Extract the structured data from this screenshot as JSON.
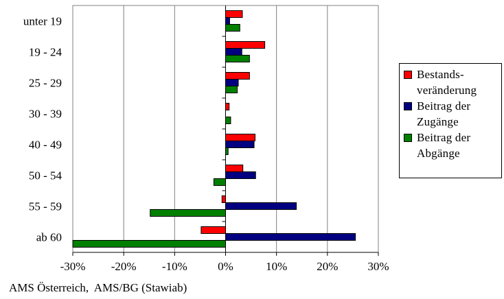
{
  "chart_data": {
    "type": "bar",
    "orientation": "horizontal",
    "categories": [
      "unter 19",
      "19 - 24",
      "25 - 29",
      "30 - 39",
      "40 - 49",
      "50 - 54",
      "55 - 59",
      "ab 60"
    ],
    "series": [
      {
        "name": "Bestands-\nveränderung",
        "color": "#ff0000",
        "values": [
          3.3,
          7.7,
          4.7,
          0.7,
          5.8,
          3.4,
          -0.7,
          -4.8
        ]
      },
      {
        "name": "Beitrag der\nZugänge",
        "color": "#000080",
        "values": [
          0.8,
          3.2,
          2.5,
          0.0,
          5.6,
          5.9,
          13.9,
          25.5
        ]
      },
      {
        "name": "Beitrag der\nAbgänge",
        "color": "#008000",
        "values": [
          2.8,
          4.7,
          2.3,
          1.0,
          0.5,
          -2.3,
          -14.8,
          -30.0
        ]
      }
    ],
    "xlim": [
      -30,
      30
    ],
    "x_ticks": [
      "-30%",
      "-20%",
      "-10%",
      "0%",
      "10%",
      "20%",
      "30%"
    ],
    "grid": "vertical",
    "legend_position": "right",
    "xlabel": "",
    "ylabel": "",
    "title": ""
  },
  "source": "AMS Österreich,  AMS/BG (Stawiab)"
}
